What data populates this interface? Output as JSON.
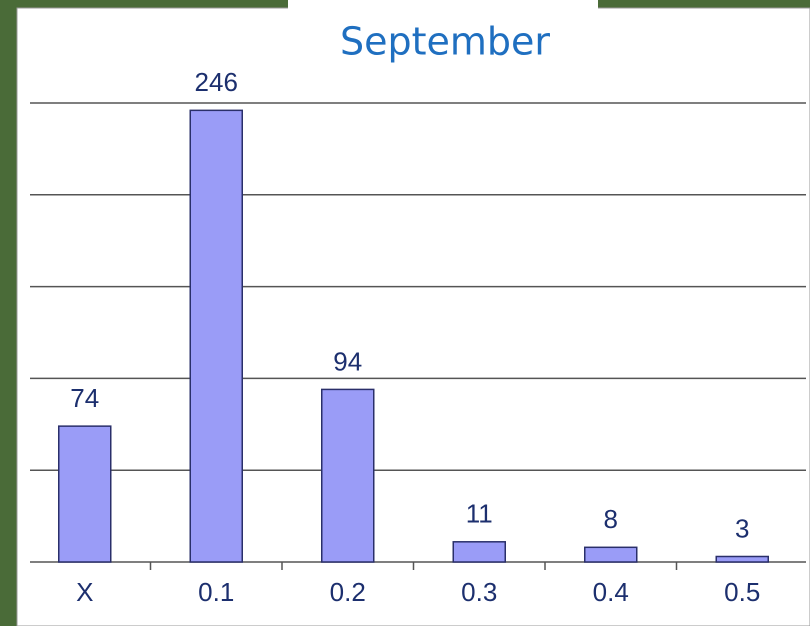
{
  "chart_data": {
    "type": "bar",
    "title": "September",
    "categories": [
      "X",
      "0.1",
      "0.2",
      "0.3",
      "0.4",
      "0.5"
    ],
    "values": [
      74,
      246,
      94,
      11,
      8,
      3
    ],
    "color": "#9a9cf7",
    "ylim": [
      0,
      250
    ],
    "yticks": [
      0,
      50,
      100,
      150,
      200,
      250
    ],
    "grid": true
  }
}
